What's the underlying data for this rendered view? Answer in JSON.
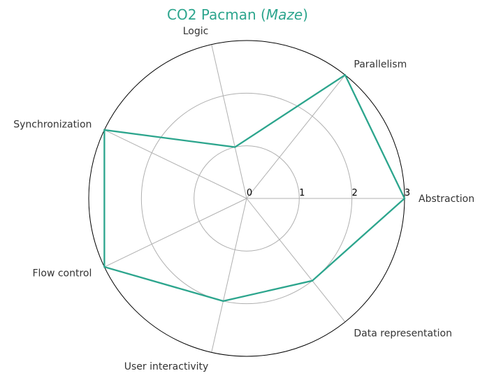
{
  "chart_data": {
    "type": "radar",
    "title": "CO2 Pacman (",
    "title_italic": "Maze",
    "title_suffix": ")",
    "title_color": "#2ca58d",
    "categories": [
      "Abstraction",
      "Parallelism",
      "Logic",
      "Synchronization",
      "Flow control",
      "User interactivity",
      "Data representation"
    ],
    "series": [
      {
        "values": [
          3,
          3,
          1,
          3,
          3,
          2,
          2
        ],
        "color": "#2ca58d"
      }
    ],
    "rlim": [
      0,
      3
    ],
    "rticks": [
      "0",
      "1",
      "2",
      "3"
    ],
    "grid": true
  }
}
